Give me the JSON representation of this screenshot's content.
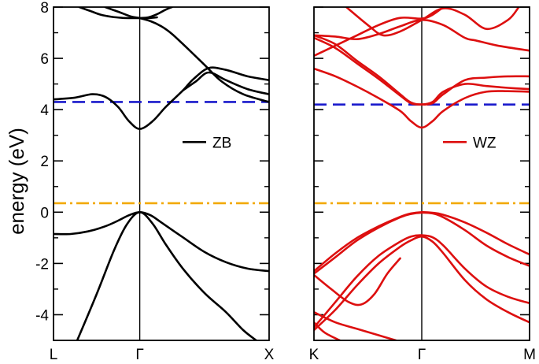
{
  "chart_data": {
    "type": "line",
    "ylabel": "energy (eV)",
    "ylim": [
      -5,
      8
    ],
    "yticks": [
      "-4",
      "-2",
      "0",
      "2",
      "4",
      "6",
      "8"
    ],
    "grid": false,
    "panels": [
      {
        "id": "zb",
        "legend": "ZB",
        "legend_position": "right-middle",
        "line_color": "#000000",
        "xlabels": [
          "L",
          "Γ",
          "X"
        ],
        "x_ticks": [
          0,
          0.4,
          1.0
        ],
        "blue_dashed_level": 4.3,
        "orange_dashdot_level": 0.35,
        "bands": [
          {
            "x": [
              0,
              0.08,
              0.16,
              0.24,
              0.3,
              0.35,
              0.4,
              0.45,
              0.5,
              0.6,
              0.7,
              0.8,
              0.9,
              1.0
            ],
            "y": [
              -0.85,
              -0.85,
              -0.75,
              -0.55,
              -0.33,
              -0.12,
              0.0,
              -0.12,
              -0.4,
              -0.98,
              -1.55,
              -1.95,
              -2.2,
              -2.3
            ]
          },
          {
            "x": [
              0.11,
              0.2,
              0.28,
              0.34,
              0.4,
              0.46,
              0.52,
              0.6,
              0.7,
              0.8,
              0.88,
              0.94
            ],
            "y": [
              -5,
              -3.2,
              -1.5,
              -0.48,
              0.0,
              -0.45,
              -1.25,
              -2.2,
              -3.15,
              -3.9,
              -4.6,
              -5
            ]
          },
          {
            "x": [
              0,
              0.1,
              0.18,
              0.24,
              0.3,
              0.35,
              0.4,
              0.46,
              0.52,
              0.6,
              0.65,
              0.72,
              0.8,
              0.9,
              1.0
            ],
            "y": [
              4.4,
              4.47,
              4.6,
              4.5,
              4.1,
              3.55,
              3.25,
              3.55,
              4.1,
              4.75,
              5.2,
              5.62,
              5.55,
              5.3,
              5.15
            ]
          },
          {
            "x": [
              0.6,
              0.66,
              0.72,
              0.8,
              0.9,
              1.0
            ],
            "y": [
              4.75,
              5.1,
              5.45,
              5.15,
              4.8,
              4.6
            ]
          },
          {
            "x": [
              0.12,
              0.17,
              0.22,
              0.27,
              0.32,
              0.36,
              0.4,
              0.44,
              0.48
            ],
            "y": [
              8.0,
              7.85,
              7.7,
              7.62,
              7.58,
              7.57,
              7.57,
              7.57,
              7.6
            ]
          },
          {
            "x": [
              0.24,
              0.3,
              0.36,
              0.4,
              0.45,
              0.5,
              0.55,
              0.62,
              0.7,
              0.78,
              0.88,
              1.0
            ],
            "y": [
              8.0,
              7.82,
              7.63,
              7.57,
              7.45,
              7.25,
              6.95,
              6.4,
              5.75,
              5.1,
              4.6,
              4.3
            ]
          },
          {
            "x": [
              0.4,
              0.44,
              0.48,
              0.52,
              0.55
            ],
            "y": [
              7.57,
              7.6,
              7.72,
              7.9,
              8.0
            ]
          }
        ]
      },
      {
        "id": "wz",
        "legend": "WZ",
        "legend_position": "right-middle",
        "line_color": "#dd0f0f",
        "xlabels": [
          "K",
          "Γ",
          "M"
        ],
        "x_ticks": [
          0,
          0.5,
          1.0
        ],
        "blue_dashed_level": 4.2,
        "orange_dashdot_level": 0.35,
        "bands": [
          {
            "x": [
              0,
              0.1,
              0.2,
              0.3,
              0.4,
              0.45,
              0.5,
              0.55,
              0.6,
              0.7,
              0.8,
              0.9,
              1.0
            ],
            "y": [
              -2.3,
              -1.6,
              -1.0,
              -0.55,
              -0.18,
              -0.05,
              0.0,
              -0.02,
              -0.1,
              -0.4,
              -0.8,
              -1.25,
              -1.65
            ]
          },
          {
            "x": [
              0,
              0.1,
              0.2,
              0.3,
              0.4,
              0.45,
              0.5,
              0.55,
              0.6,
              0.7,
              0.8,
              0.9,
              1.0
            ],
            "y": [
              -2.4,
              -1.75,
              -1.1,
              -0.6,
              -0.2,
              -0.07,
              -0.02,
              -0.05,
              -0.2,
              -0.7,
              -1.3,
              -1.75,
              -2.1
            ]
          },
          {
            "x": [
              0,
              0.1,
              0.2,
              0.3,
              0.4,
              0.45,
              0.5,
              0.55,
              0.6,
              0.7,
              0.8,
              0.9,
              1.0
            ],
            "y": [
              -4.5,
              -3.5,
              -2.5,
              -1.7,
              -1.15,
              -0.95,
              -0.9,
              -0.98,
              -1.3,
              -2.2,
              -2.9,
              -3.3,
              -3.55
            ]
          },
          {
            "x": [
              0,
              0.1,
              0.2,
              0.3,
              0.4,
              0.45,
              0.5,
              0.55,
              0.6,
              0.7,
              0.8,
              0.9,
              1.0
            ],
            "y": [
              -4.6,
              -3.8,
              -2.85,
              -2.0,
              -1.35,
              -1.1,
              -0.95,
              -1.15,
              -1.6,
              -2.65,
              -3.4,
              -3.9,
              -4.3
            ]
          },
          {
            "x": [
              0,
              0.08,
              0.16,
              0.22,
              0.28,
              0.34,
              0.4
            ],
            "y": [
              -2.45,
              -3.0,
              -3.5,
              -3.6,
              -3.2,
              -2.4,
              -1.8
            ]
          },
          {
            "x": [
              0,
              0.1,
              0.2,
              0.3,
              0.38
            ],
            "y": [
              -3.9,
              -4.3,
              -4.55,
              -4.8,
              -5.0
            ]
          },
          {
            "x": [
              0,
              0.05,
              0.12
            ],
            "y": [
              -4.3,
              -4.7,
              -5.0
            ]
          },
          {
            "x": [
              0,
              0.1,
              0.2,
              0.3,
              0.4,
              0.45,
              0.5,
              0.55,
              0.6,
              0.7,
              0.8,
              0.9,
              1.0
            ],
            "y": [
              6.8,
              6.4,
              5.8,
              5.2,
              4.55,
              4.25,
              4.2,
              4.25,
              4.6,
              5.15,
              5.25,
              5.3,
              5.3
            ]
          },
          {
            "x": [
              0,
              0.1,
              0.2,
              0.3,
              0.4,
              0.45,
              0.5,
              0.55,
              0.6,
              0.7,
              0.8,
              0.9,
              1.0
            ],
            "y": [
              6.9,
              6.55,
              5.9,
              5.3,
              4.6,
              4.28,
              4.2,
              4.3,
              4.7,
              5.0,
              4.92,
              4.85,
              4.8
            ]
          },
          {
            "x": [
              0,
              0.1,
              0.2,
              0.3,
              0.4,
              0.45,
              0.5,
              0.55,
              0.6,
              0.7,
              0.8,
              0.9,
              1.0
            ],
            "y": [
              5.6,
              5.3,
              4.9,
              4.45,
              3.95,
              3.55,
              3.3,
              3.55,
              3.95,
              4.45,
              4.7,
              4.72,
              4.7
            ]
          },
          {
            "x": [
              0,
              0.1,
              0.2,
              0.3,
              0.4,
              0.5,
              0.6,
              0.7,
              0.75,
              0.85,
              1.0
            ],
            "y": [
              6.9,
              6.85,
              6.75,
              6.95,
              7.25,
              7.5,
              7.3,
              6.8,
              6.7,
              6.5,
              6.3
            ]
          },
          {
            "x": [
              0.15,
              0.25,
              0.32,
              0.4,
              0.5,
              0.6,
              0.7,
              0.8,
              0.9,
              0.95
            ],
            "y": [
              8.0,
              7.3,
              6.9,
              7.05,
              7.5,
              7.95,
              7.7,
              7.15,
              7.5,
              8.0
            ]
          },
          {
            "x": [
              0,
              0.1,
              0.2,
              0.3,
              0.4,
              0.5,
              0.55,
              0.6
            ],
            "y": [
              6.1,
              6.5,
              6.9,
              7.3,
              7.58,
              7.55,
              7.7,
              8.0
            ]
          }
        ]
      }
    ]
  }
}
